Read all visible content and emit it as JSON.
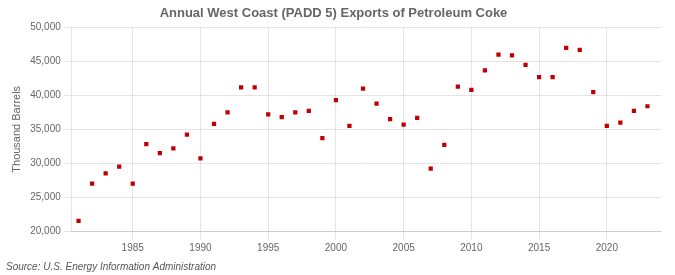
{
  "chart_data": {
    "type": "scatter",
    "title": "Annual West Coast (PADD 5) Exports of Petroleum Coke",
    "ylabel": "Thousand Barrels",
    "x": [
      1981,
      1982,
      1983,
      1984,
      1985,
      1986,
      1987,
      1988,
      1989,
      1990,
      1991,
      1992,
      1993,
      1994,
      1995,
      1996,
      1997,
      1998,
      1999,
      2000,
      2001,
      2002,
      2003,
      2004,
      2005,
      2006,
      2007,
      2008,
      2009,
      2010,
      2011,
      2012,
      2013,
      2014,
      2015,
      2016,
      2017,
      2018,
      2019,
      2020,
      2021,
      2022,
      2023
    ],
    "values": [
      21500,
      27000,
      28500,
      29500,
      27000,
      32800,
      31500,
      32200,
      34200,
      30700,
      35800,
      37500,
      41200,
      41200,
      37200,
      36800,
      37500,
      37700,
      33700,
      39300,
      35500,
      41000,
      38800,
      36500,
      35700,
      36700,
      29200,
      32700,
      41300,
      40800,
      43700,
      46000,
      45900,
      44500,
      42700,
      42700,
      47000,
      46700,
      40500,
      35500,
      36000,
      37700,
      38400
    ],
    "color": "#c00000",
    "marker": "square",
    "xlim": [
      1980.5,
      2024
    ],
    "xticks": [
      1985,
      1990,
      1995,
      2000,
      2005,
      2010,
      2015,
      2020
    ],
    "ylim": [
      20000,
      50000
    ],
    "yticks": [
      {
        "value": 20000,
        "label": "20,000"
      },
      {
        "value": 25000,
        "label": "25,000"
      },
      {
        "value": 30000,
        "label": "30,000"
      },
      {
        "value": 35000,
        "label": "35,000"
      },
      {
        "value": 40000,
        "label": "40,000"
      },
      {
        "value": 45000,
        "label": "45,000"
      },
      {
        "value": 50000,
        "label": "50,000"
      }
    ],
    "grid": true,
    "annotations": [
      "Source: U.S. Energy Information Administration"
    ]
  }
}
